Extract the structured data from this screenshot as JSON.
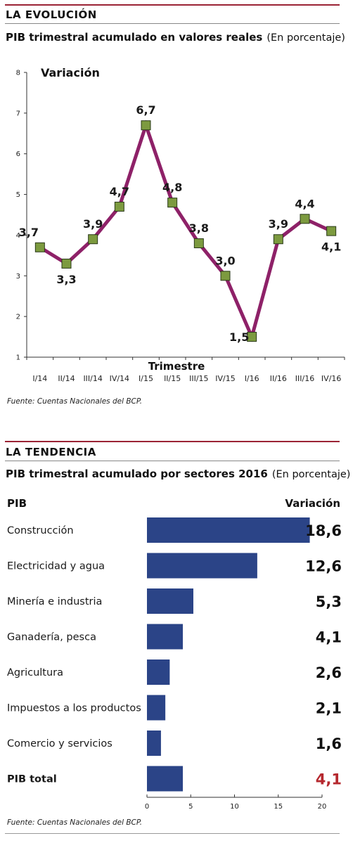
{
  "section1": {
    "label": "LA EVOLUCIÓN",
    "title": "PIB trimestral acumulado en valores reales",
    "unit": "(En porcentaje)",
    "source": "Fuente: Cuentas Nacionales del BCP."
  },
  "section2": {
    "label": "LA TENDENCIA",
    "title": "PIB trimestral acumulado por sectores 2016",
    "unit": "(En porcentaje)",
    "col_left": "PIB",
    "col_right": "Variación",
    "source": "Fuente: Cuentas Nacionales del BCP."
  },
  "colors": {
    "line": "#8e2168",
    "marker": "#7c9a3f",
    "bar": "#2b4487",
    "highlight": "#b5282e",
    "rule": "#9b2335"
  },
  "chart_data": [
    {
      "type": "line",
      "ylabel": "Variación",
      "xlabel": "Trimestre",
      "ylim": [
        1,
        8
      ],
      "yticks": [
        1,
        2,
        3,
        4,
        5,
        6,
        7,
        8
      ],
      "categories": [
        "I/14",
        "II/14",
        "III/14",
        "IV/14",
        "I/15",
        "II/15",
        "III/15",
        "IV/15",
        "I/16",
        "II/16",
        "III/16",
        "IV/16"
      ],
      "values": [
        3.7,
        3.3,
        3.9,
        4.7,
        6.7,
        4.8,
        3.8,
        3.0,
        1.5,
        3.9,
        4.4,
        4.1
      ],
      "data_labels": [
        "3,7",
        "3,3",
        "3,9",
        "4,7",
        "6,7",
        "4,8",
        "3,8",
        "3,0",
        "1,5",
        "3,9",
        "4,4",
        "4,1"
      ],
      "grid": false
    },
    {
      "type": "bar",
      "orientation": "horizontal",
      "categories": [
        "Construcción",
        "Electricidad y agua",
        "Minería e industria",
        "Ganadería, pesca",
        "Agricultura",
        "Impuestos a los productos",
        "Comercio y servicios",
        "PIB total"
      ],
      "values": [
        18.6,
        12.6,
        5.3,
        4.1,
        2.6,
        2.1,
        1.6,
        4.1
      ],
      "data_labels": [
        "18,6",
        "12,6",
        "5,3",
        "4,1",
        "2,6",
        "2,1",
        "1,6",
        "4,1"
      ],
      "xlim": [
        0,
        20
      ],
      "xticks": [
        0,
        5,
        10,
        15,
        20
      ],
      "highlight": "PIB total",
      "grid": false
    }
  ]
}
